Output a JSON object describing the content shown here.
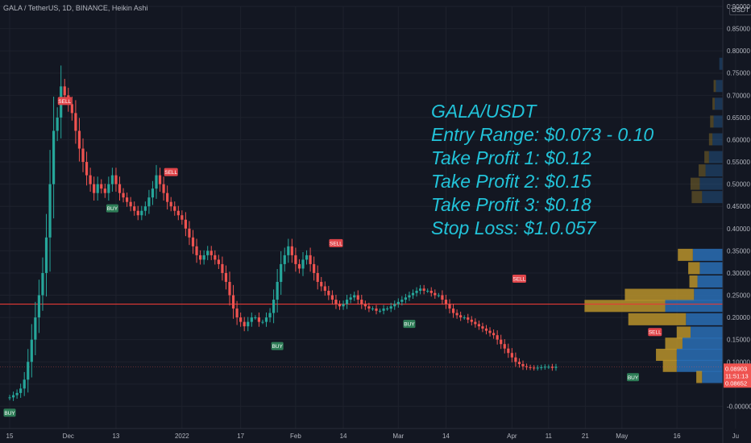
{
  "header": {
    "title": "GALA / TetherUS, 1D, BINANCE, Heikin Ashi",
    "unit": "USDT"
  },
  "overlay": {
    "lines": [
      "GALA/USDT",
      "Entry Range: $0.073 - 0.10",
      "Take Profit 1: $0.12",
      "Take Profit 2: $0.15",
      "Take Profit 3: $0.18",
      "Stop Loss: $1.0.057"
    ]
  },
  "price_labels": {
    "current": "0.08903",
    "countdown": "11:51:13",
    "low": "0.08652"
  },
  "colors": {
    "bg": "#131722",
    "grid": "#1e222d",
    "up": "#26a69a",
    "down": "#ef5350",
    "line": "#e53935",
    "vp_up": "#2a6fb5",
    "vp_down": "#b8922a",
    "text": "#b2b5be",
    "overlay": "#22c3d9"
  },
  "chart_data": {
    "type": "candlestick",
    "title": "GALA / TetherUS, 1D, BINANCE, Heikin Ashi",
    "y_axis": {
      "min": -0.05,
      "max": 0.9,
      "ticks": [
        "0.90000",
        "0.85000",
        "0.80000",
        "0.75000",
        "0.70000",
        "0.65000",
        "0.60000",
        "0.55000",
        "0.50000",
        "0.45000",
        "0.40000",
        "0.35000",
        "0.30000",
        "0.25000",
        "0.20000",
        "0.15000",
        "0.10000",
        "0.05000",
        "-0.00000"
      ]
    },
    "x_axis": {
      "labels": [
        {
          "text": "15",
          "day": 0
        },
        {
          "text": "Dec",
          "day": 16
        },
        {
          "text": "13",
          "day": 29
        },
        {
          "text": "2022",
          "day": 47
        },
        {
          "text": "17",
          "day": 63
        },
        {
          "text": "Feb",
          "day": 78
        },
        {
          "text": "14",
          "day": 91
        },
        {
          "text": "Mar",
          "day": 106
        },
        {
          "text": "14",
          "day": 119
        },
        {
          "text": "Apr",
          "day": 137
        },
        {
          "text": "11",
          "day": 147
        },
        {
          "text": "21",
          "day": 157
        },
        {
          "text": "May",
          "day": 167
        },
        {
          "text": "16",
          "day": 182
        },
        {
          "text": "Ju",
          "day": 198
        }
      ]
    },
    "horizontal_line": 0.23,
    "current_price_line": 0.08903,
    "close_series": [
      0.02,
      0.025,
      0.03,
      0.04,
      0.06,
      0.1,
      0.15,
      0.2,
      0.25,
      0.3,
      0.38,
      0.5,
      0.62,
      0.65,
      0.72,
      0.7,
      0.68,
      0.66,
      0.62,
      0.58,
      0.55,
      0.52,
      0.5,
      0.48,
      0.5,
      0.49,
      0.48,
      0.5,
      0.52,
      0.5,
      0.48,
      0.47,
      0.46,
      0.45,
      0.44,
      0.43,
      0.44,
      0.45,
      0.47,
      0.49,
      0.52,
      0.5,
      0.48,
      0.46,
      0.45,
      0.44,
      0.43,
      0.42,
      0.4,
      0.38,
      0.36,
      0.34,
      0.33,
      0.34,
      0.35,
      0.34,
      0.33,
      0.32,
      0.3,
      0.28,
      0.25,
      0.22,
      0.2,
      0.19,
      0.18,
      0.19,
      0.2,
      0.2,
      0.19,
      0.19,
      0.2,
      0.21,
      0.24,
      0.28,
      0.32,
      0.34,
      0.36,
      0.34,
      0.32,
      0.31,
      0.33,
      0.34,
      0.32,
      0.3,
      0.28,
      0.27,
      0.26,
      0.25,
      0.24,
      0.23,
      0.225,
      0.23,
      0.24,
      0.245,
      0.25,
      0.24,
      0.23,
      0.225,
      0.22,
      0.22,
      0.215,
      0.215,
      0.22,
      0.22,
      0.225,
      0.23,
      0.235,
      0.24,
      0.245,
      0.25,
      0.255,
      0.26,
      0.265,
      0.26,
      0.26,
      0.255,
      0.25,
      0.25,
      0.24,
      0.23,
      0.22,
      0.21,
      0.205,
      0.2,
      0.2,
      0.195,
      0.19,
      0.185,
      0.18,
      0.175,
      0.17,
      0.165,
      0.16,
      0.15,
      0.14,
      0.13,
      0.12,
      0.11,
      0.1,
      0.095,
      0.09,
      0.088,
      0.087,
      0.086,
      0.087,
      0.088,
      0.089,
      0.089,
      0.0865,
      0.089
    ],
    "signals": [
      {
        "text": "BUY",
        "type": "buy",
        "day": 0,
        "price": 0.02
      },
      {
        "text": "SELL",
        "type": "sell",
        "day": 15,
        "price": 0.66
      },
      {
        "text": "BUY",
        "type": "buy",
        "day": 28,
        "price": 0.48
      },
      {
        "text": "SELL",
        "type": "sell",
        "day": 44,
        "price": 0.5
      },
      {
        "text": "BUY",
        "type": "buy",
        "day": 73,
        "price": 0.17
      },
      {
        "text": "SELL",
        "type": "sell",
        "day": 89,
        "price": 0.34
      },
      {
        "text": "BUY",
        "type": "buy",
        "day": 109,
        "price": 0.22
      },
      {
        "text": "SELL",
        "type": "sell",
        "day": 139,
        "price": 0.26
      },
      {
        "text": "BUY",
        "type": "buy",
        "day": 170,
        "price": 0.1
      },
      {
        "text": "SELL",
        "type": "sell",
        "day": 176,
        "price": 0.14
      }
    ],
    "volume_profile": [
      {
        "price": 0.34,
        "up": 0.26,
        "down": 0.13
      },
      {
        "price": 0.31,
        "up": 0.2,
        "down": 0.1
      },
      {
        "price": 0.28,
        "up": 0.22,
        "down": 0.07
      },
      {
        "price": 0.25,
        "up": 0.25,
        "down": 0.6
      },
      {
        "price": 0.225,
        "up": 0.5,
        "down": 0.7
      },
      {
        "price": 0.195,
        "up": 0.32,
        "down": 0.5
      },
      {
        "price": 0.165,
        "up": 0.28,
        "down": 0.12
      },
      {
        "price": 0.14,
        "up": 0.35,
        "down": 0.15
      },
      {
        "price": 0.115,
        "up": 0.4,
        "down": 0.18
      },
      {
        "price": 0.09,
        "up": 0.4,
        "down": 0.12
      },
      {
        "price": 0.065,
        "up": 0.18,
        "down": 0.05
      },
      {
        "price": 0.47,
        "up": 0.18,
        "down": 0.09
      },
      {
        "price": 0.5,
        "up": 0.2,
        "down": 0.08
      },
      {
        "price": 0.53,
        "up": 0.15,
        "down": 0.06
      },
      {
        "price": 0.56,
        "up": 0.12,
        "down": 0.04
      },
      {
        "price": 0.6,
        "up": 0.09,
        "down": 0.03
      },
      {
        "price": 0.64,
        "up": 0.08,
        "down": 0.03
      },
      {
        "price": 0.68,
        "up": 0.07,
        "down": 0.02
      },
      {
        "price": 0.72,
        "up": 0.06,
        "down": 0.02
      },
      {
        "price": 0.77,
        "up": 0.03,
        "down": 0.0
      }
    ]
  }
}
